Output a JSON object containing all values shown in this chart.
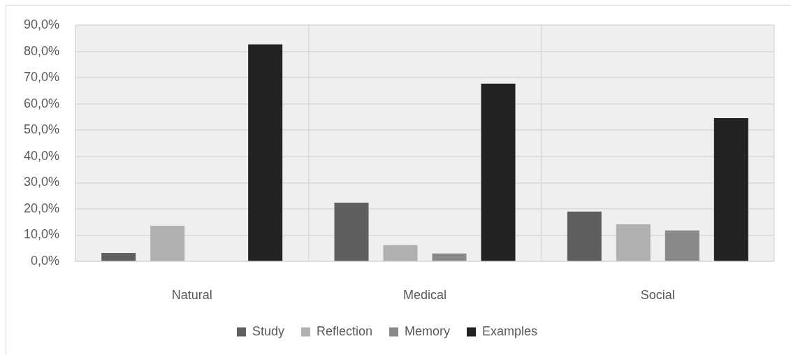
{
  "chart_data": {
    "type": "bar",
    "categories": [
      "Natural",
      "Medical",
      "Social"
    ],
    "series": [
      {
        "name": "Study",
        "color": "#5f5f5f",
        "values": [
          3.2,
          22.4,
          19.0
        ]
      },
      {
        "name": "Reflection",
        "color": "#b0b0b0",
        "values": [
          13.6,
          6.2,
          14.1
        ]
      },
      {
        "name": "Memory",
        "color": "#898989",
        "values": [
          null,
          3.0,
          11.8
        ]
      },
      {
        "name": "Examples",
        "color": "#222222",
        "values": [
          82.7,
          67.7,
          54.6
        ]
      }
    ],
    "ylim": [
      0,
      90
    ],
    "yticks": [
      {
        "value": 0,
        "label": "0,0%"
      },
      {
        "value": 10,
        "label": "10,0%"
      },
      {
        "value": 20,
        "label": "20,0%"
      },
      {
        "value": 30,
        "label": "30,0%"
      },
      {
        "value": 40,
        "label": "40,0%"
      },
      {
        "value": 50,
        "label": "50,0%"
      },
      {
        "value": 60,
        "label": "60,0%"
      },
      {
        "value": 70,
        "label": "70,0%"
      },
      {
        "value": 80,
        "label": "80,0%"
      },
      {
        "value": 90,
        "label": "90,0%"
      }
    ],
    "grid": true,
    "legend": "bottom"
  }
}
